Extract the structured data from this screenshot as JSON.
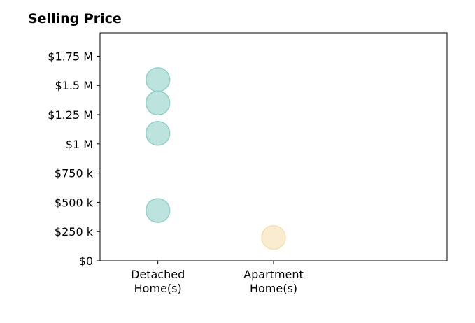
{
  "chart_data": {
    "type": "scatter",
    "title": "Selling Price",
    "xlabel": "",
    "ylabel": "",
    "categories": [
      [
        "Detached",
        "Home(s)"
      ],
      [
        "Apartment",
        "Home(s)"
      ]
    ],
    "xlim": [
      -0.5,
      2.5
    ],
    "ylim": [
      0,
      1950000
    ],
    "yticks": [
      {
        "value": 0,
        "label": "$0"
      },
      {
        "value": 250000,
        "label": "$250 k"
      },
      {
        "value": 500000,
        "label": "$500 k"
      },
      {
        "value": 750000,
        "label": "$750 k"
      },
      {
        "value": 1000000,
        "label": "$1 M"
      },
      {
        "value": 1250000,
        "label": "$1.25 M"
      },
      {
        "value": 1500000,
        "label": "$1.5 M"
      },
      {
        "value": 1750000,
        "label": "$1.75 M"
      }
    ],
    "grid": false,
    "series": [
      {
        "category": 0,
        "color": "#8fd0c8",
        "values": [
          1550000,
          1350000,
          1090000,
          430000
        ]
      },
      {
        "category": 1,
        "color": "#f5dfb0",
        "values": [
          200000
        ]
      }
    ]
  }
}
